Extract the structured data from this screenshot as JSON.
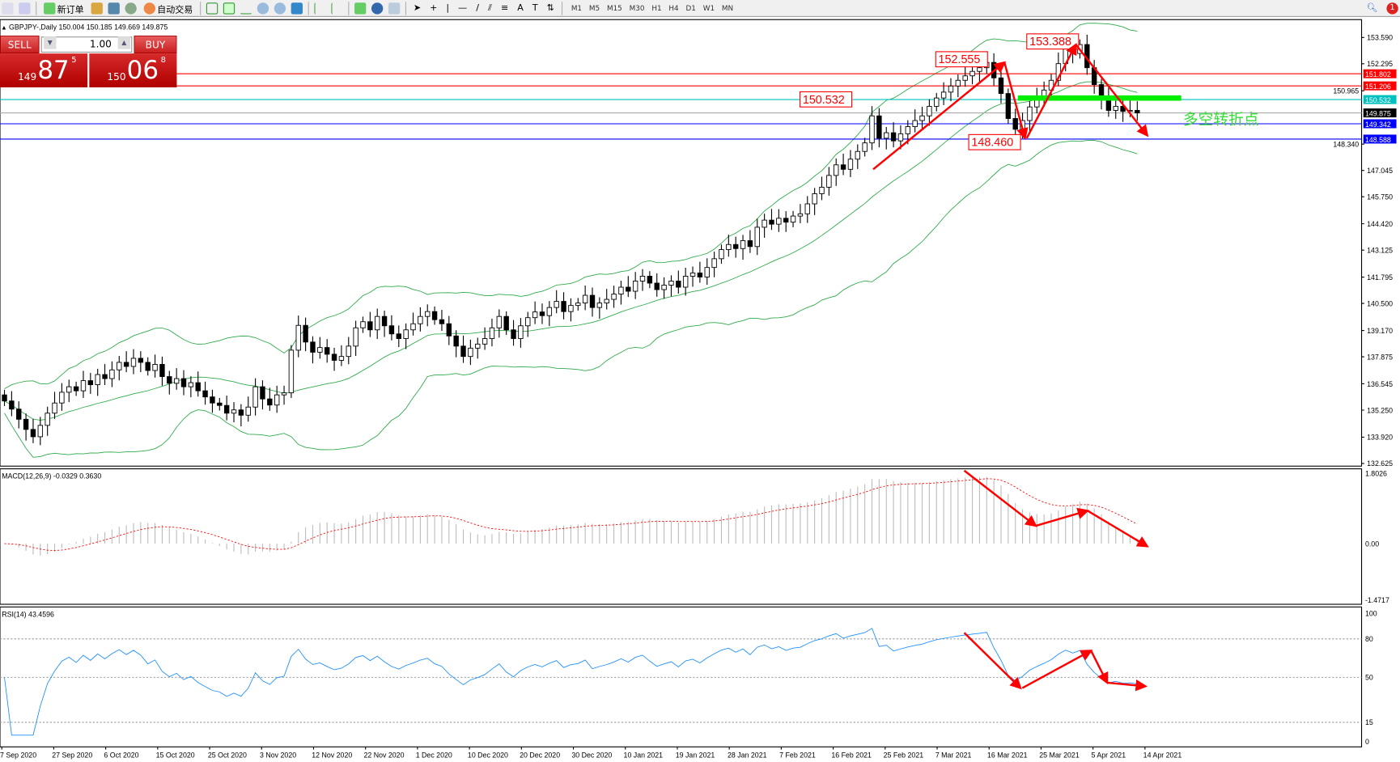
{
  "toolbar": {
    "new_order": "新订单",
    "auto_trade": "自动交易",
    "timeframes": [
      "M1",
      "M5",
      "M15",
      "M30",
      "H1",
      "H4",
      "D1",
      "W1",
      "MN"
    ],
    "notification_count": "1"
  },
  "chart_header": "GBPJPY-,Daily  150.004 150.185 149.669 149.875",
  "trade_panel": {
    "sell_label": "SELL",
    "buy_label": "BUY",
    "lot": "1.00",
    "sell_big": "149",
    "sell_main": "87",
    "sell_sup": "5",
    "buy_big": "150",
    "buy_main": "06",
    "buy_sup": "8"
  },
  "annotations": {
    "labels": [
      "152.555",
      "150.532",
      "153.388",
      "148.460"
    ],
    "zone_text": "多空转折点"
  },
  "colors": {
    "up": "#ffffff",
    "down": "#000000",
    "bands": "#2eaa4a",
    "arrows": "#ff0000",
    "zone": "#00ee00",
    "rsi": "#1e90ff",
    "macd_signal": "#ff0000"
  },
  "chart_data": {
    "type": "candlestick",
    "symbol": "GBPJPY-",
    "timeframe": "Daily",
    "closes": [
      135.7,
      135.3,
      134.8,
      134.3,
      133.94,
      134.5,
      135.1,
      135.6,
      136.13,
      136.4,
      136.2,
      136.7,
      136.5,
      137.0,
      136.8,
      137.23,
      137.6,
      137.4,
      137.8,
      137.6,
      137.2,
      137.5,
      136.9,
      136.57,
      136.8,
      136.4,
      136.6,
      136.2,
      135.9,
      135.6,
      135.48,
      135.1,
      135.26,
      135.0,
      135.4,
      136.4,
      135.8,
      135.5,
      136.0,
      136.1,
      138.2,
      139.42,
      138.6,
      138.1,
      138.33,
      138.0,
      137.7,
      137.89,
      138.4,
      139.3,
      139.6,
      139.2,
      139.86,
      139.4,
      139.0,
      138.77,
      139.2,
      139.5,
      139.86,
      140.1,
      139.7,
      139.5,
      138.9,
      138.4,
      137.89,
      138.3,
      138.5,
      138.77,
      139.3,
      139.86,
      139.2,
      138.77,
      139.4,
      139.8,
      140.08,
      139.9,
      140.3,
      140.6,
      140.1,
      140.4,
      140.52,
      140.9,
      140.3,
      140.52,
      140.7,
      140.96,
      141.3,
      141.1,
      141.6,
      141.84,
      141.5,
      141.18,
      141.4,
      141.6,
      141.3,
      141.84,
      142.0,
      141.8,
      142.27,
      142.7,
      143.15,
      143.4,
      143.2,
      143.59,
      143.3,
      144.25,
      144.6,
      144.4,
      144.69,
      144.5,
      144.8,
      144.91,
      145.4,
      145.9,
      146.22,
      146.8,
      147.32,
      147.1,
      147.6,
      147.98,
      148.4,
      149.73,
      148.63,
      148.9,
      148.5,
      148.85,
      149.2,
      149.5,
      149.73,
      150.2,
      150.61,
      150.9,
      151.2,
      151.48,
      151.7,
      151.92,
      152.1,
      152.36,
      151.6,
      150.83,
      149.6,
      149.07,
      149.5,
      150.17,
      150.6,
      151.0,
      151.48,
      152.3,
      153.02,
      152.8,
      153.24,
      152.1,
      151.27,
      150.6,
      150.0,
      150.2,
      149.95,
      150.0,
      149.875
    ],
    "price_ticks": [
      "153.590",
      "152.295",
      "150.965",
      "148.340",
      "147.045",
      "145.750",
      "144.420",
      "143.125",
      "141.795",
      "140.500",
      "139.170",
      "137.875",
      "136.545",
      "135.250",
      "133.920",
      "132.625"
    ],
    "price_range": [
      132.625,
      153.59
    ],
    "hlines": [
      {
        "value": "151.802",
        "color": "#ff0000"
      },
      {
        "value": "151.206",
        "color": "#ff0000"
      },
      {
        "value": "150.532",
        "color": "#00c0c0"
      },
      {
        "value": "149.875",
        "color": "#000000"
      },
      {
        "value": "149.342",
        "color": "#0000ff"
      },
      {
        "value": "148.588",
        "color": "#0000ff"
      }
    ],
    "bollinger": "BB(20,2)",
    "date_labels": [
      "7 Sep 2020",
      "27 Sep 2020",
      "6 Oct 2020",
      "15 Oct 2020",
      "25 Oct 2020",
      "3 Nov 2020",
      "12 Nov 2020",
      "22 Nov 2020",
      "1 Dec 2020",
      "10 Dec 2020",
      "20 Dec 2020",
      "30 Dec 2020",
      "10 Jan 2021",
      "19 Jan 2021",
      "28 Jan 2021",
      "7 Feb 2021",
      "16 Feb 2021",
      "25 Feb 2021",
      "7 Mar 2021",
      "16 Mar 2021",
      "25 Mar 2021",
      "5 Apr 2021",
      "14 Apr 2021"
    ],
    "macd": {
      "label": "MACD(12,26,9) -0.0329 0.3630",
      "ticks": [
        "1.8026",
        "0.00",
        "-1.4717"
      ],
      "range": [
        -1.4717,
        1.8026
      ]
    },
    "rsi": {
      "label": "RSI(14) 43.4596",
      "ticks": [
        "100",
        "80",
        "50",
        "15",
        "0"
      ],
      "levels": [
        80,
        50,
        15
      ]
    }
  }
}
